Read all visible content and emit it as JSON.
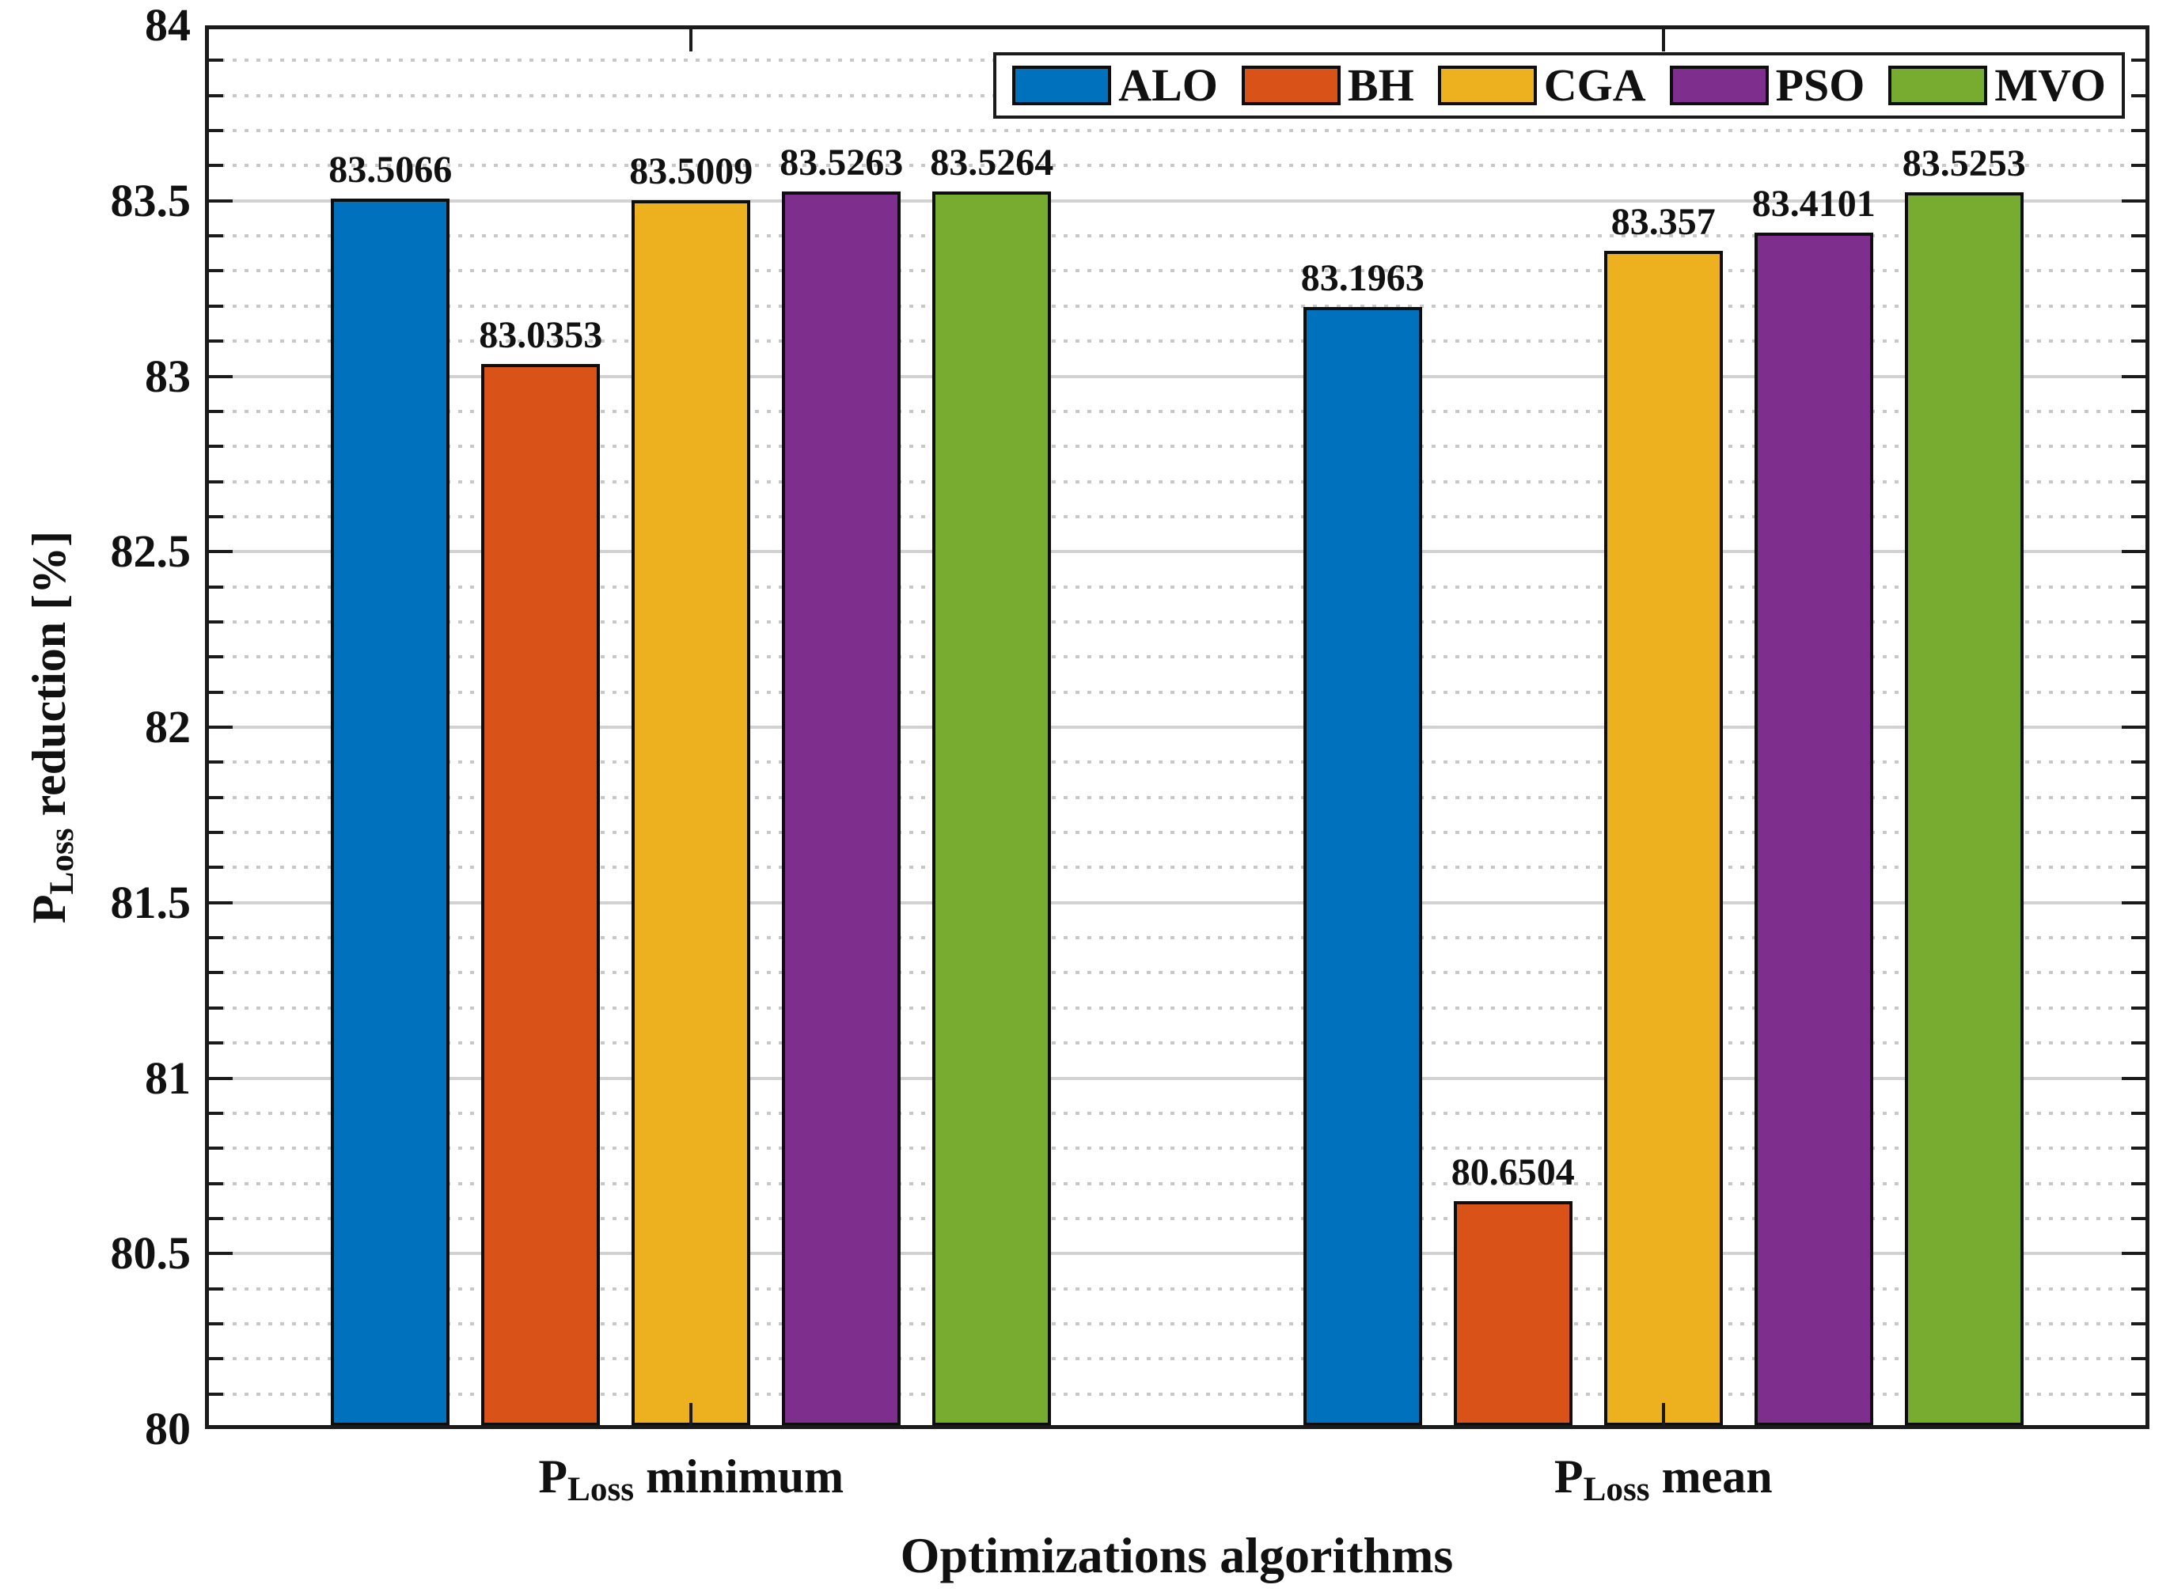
{
  "chart_data": {
    "type": "bar",
    "title": "",
    "xlabel": "Optimizations algorithms",
    "ylabel": "P_Loss reduction [%]",
    "ylabel_parts": {
      "base": "P",
      "sub": "Loss",
      "rest": " reduction [%]"
    },
    "categories": [
      "P_Loss minimum",
      "P_Loss mean"
    ],
    "categories_parts": [
      {
        "base": "P",
        "sub": "Loss",
        "rest": " minimum"
      },
      {
        "base": "P",
        "sub": "Loss",
        "rest": " mean"
      }
    ],
    "series": [
      {
        "name": "ALO",
        "color": "#0072BD",
        "values": [
          83.5066,
          83.1963
        ],
        "labels": [
          "83.5066",
          "83.1963"
        ]
      },
      {
        "name": "BH",
        "color": "#D95319",
        "values": [
          83.0353,
          80.6504
        ],
        "labels": [
          "83.0353",
          "80.6504"
        ]
      },
      {
        "name": "CGA",
        "color": "#EDB120",
        "values": [
          83.5009,
          83.357
        ],
        "labels": [
          "83.5009",
          "83.357"
        ]
      },
      {
        "name": "PSO",
        "color": "#7E2F8E",
        "values": [
          83.5263,
          83.4101
        ],
        "labels": [
          "83.5263",
          "83.4101"
        ]
      },
      {
        "name": "MVO",
        "color": "#77AC30",
        "values": [
          83.5264,
          83.5253
        ],
        "labels": [
          "83.5264",
          "83.5253"
        ]
      }
    ],
    "ylim": [
      80,
      84
    ],
    "yticks": [
      80,
      80.5,
      81,
      81.5,
      82,
      82.5,
      83,
      83.5,
      84
    ],
    "ytick_labels": [
      "80",
      "80.5",
      "81",
      "81.5",
      "82",
      "82.5",
      "83",
      "83.5",
      "84"
    ],
    "minor_tick_step": 0.1,
    "grid": "on",
    "minor_grid": "on",
    "legend_position": "top-right",
    "bar_edge_color": "#0e0e0e"
  },
  "colors": {
    "axis": "#1b1b1b",
    "text": "#111111",
    "grid_major": "#d2d2d2",
    "grid_minor": "#c8c8c8",
    "background": "#ffffff"
  }
}
